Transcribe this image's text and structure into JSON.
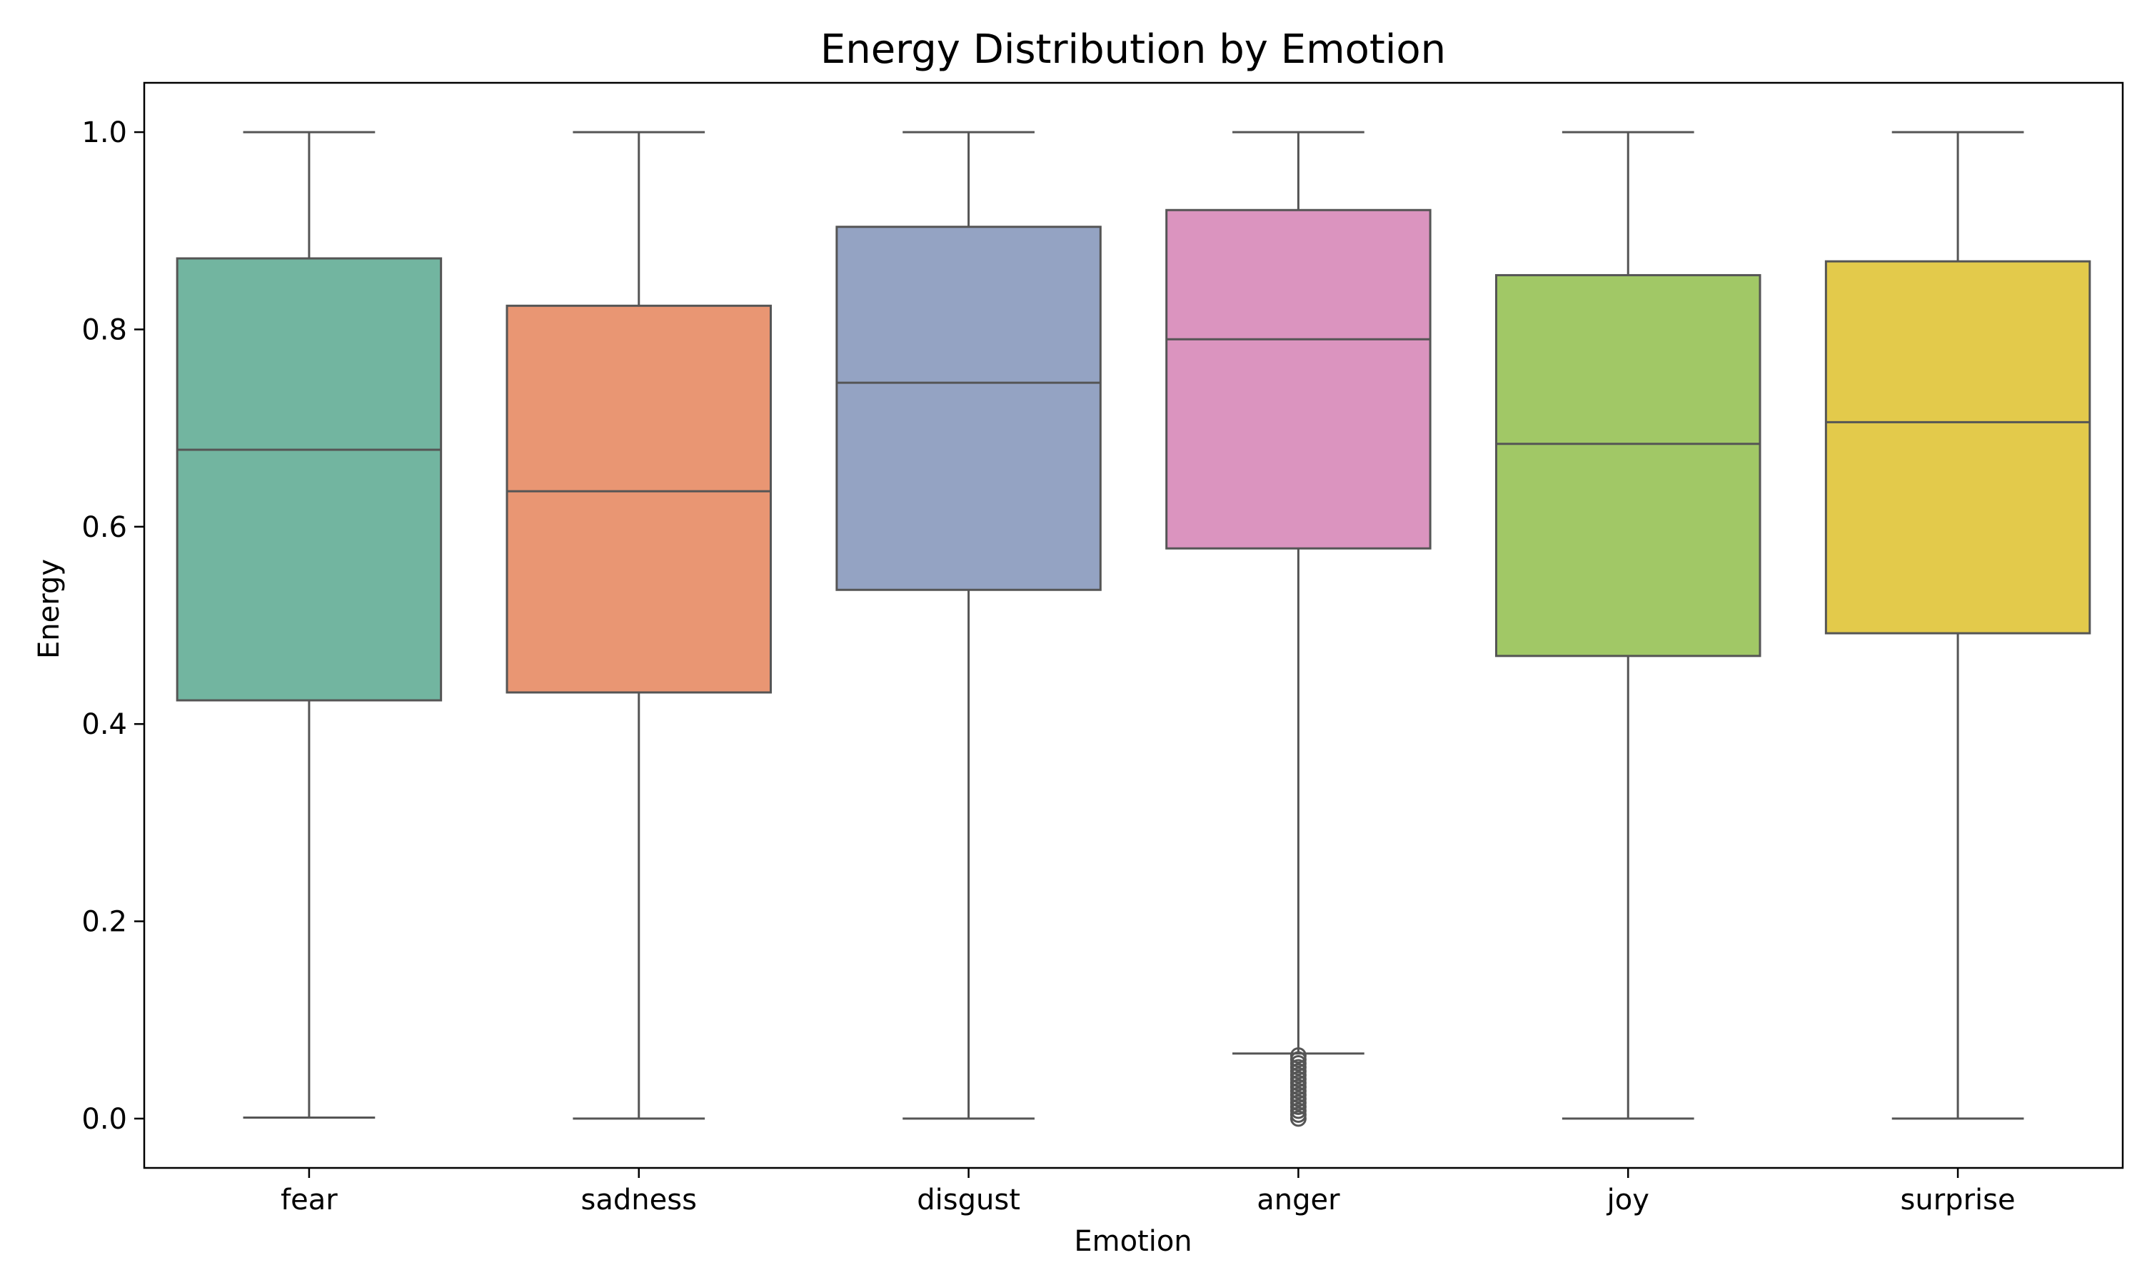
{
  "chart_data": {
    "type": "box",
    "title": "Energy Distribution by Emotion",
    "xlabel": "Emotion",
    "ylabel": "Energy",
    "ylim": [
      -0.05,
      1.05
    ],
    "yticks": [
      "0.0",
      "0.2",
      "0.4",
      "0.6",
      "0.8",
      "1.0"
    ],
    "grid": false,
    "legend": "none",
    "median_color": "#555555",
    "categories": [
      "fear",
      "sadness",
      "disgust",
      "anger",
      "joy",
      "surprise"
    ],
    "series": [
      {
        "category": "fear",
        "color": "#72b5a0",
        "whisker_low": 0.001,
        "q1": 0.424,
        "median": 0.678,
        "q3": 0.872,
        "whisker_high": 1.0,
        "outliers": []
      },
      {
        "category": "sadness",
        "color": "#e99673",
        "whisker_low": 0.0,
        "q1": 0.432,
        "median": 0.636,
        "q3": 0.824,
        "whisker_high": 1.0,
        "outliers": []
      },
      {
        "category": "disgust",
        "color": "#94a3c3",
        "whisker_low": 0.0,
        "q1": 0.536,
        "median": 0.746,
        "q3": 0.904,
        "whisker_high": 1.0,
        "outliers": []
      },
      {
        "category": "anger",
        "color": "#db94bf",
        "whisker_low": 0.066,
        "q1": 0.578,
        "median": 0.79,
        "q3": 0.921,
        "whisker_high": 1.0,
        "outliers": [
          0.0,
          0.004,
          0.008,
          0.012,
          0.016,
          0.02,
          0.024,
          0.028,
          0.032,
          0.036,
          0.04,
          0.044,
          0.048,
          0.052,
          0.056,
          0.06,
          0.064
        ]
      },
      {
        "category": "joy",
        "color": "#a1c866",
        "whisker_low": 0.0,
        "q1": 0.469,
        "median": 0.684,
        "q3": 0.855,
        "whisker_high": 1.0,
        "outliers": []
      },
      {
        "category": "surprise",
        "color": "#e3ca4b",
        "whisker_low": 0.0,
        "q1": 0.492,
        "median": 0.706,
        "q3": 0.869,
        "whisker_high": 1.0,
        "outliers": []
      }
    ]
  }
}
